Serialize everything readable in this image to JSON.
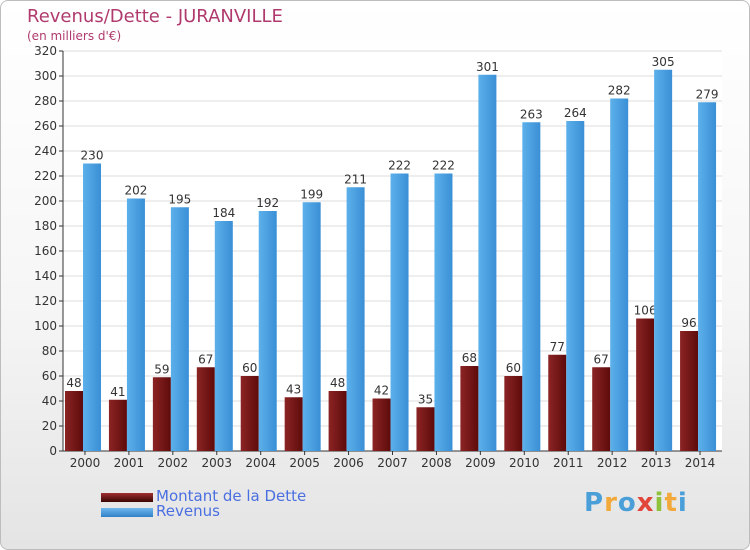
{
  "title": "Revenus/Dette - JURANVILLE",
  "subtitle": "(en milliers d'€)",
  "logo": {
    "text": "Proxiti",
    "letters": [
      {
        "ch": "P",
        "color": "#4a9fd8"
      },
      {
        "ch": "r",
        "color": "#f2a93b"
      },
      {
        "ch": "o",
        "color": "#4a9fd8"
      },
      {
        "ch": "x",
        "color": "#e2463a"
      },
      {
        "ch": "i",
        "color": "#8fc23c"
      },
      {
        "ch": "t",
        "color": "#f2a93b"
      },
      {
        "ch": "i",
        "color": "#4a9fd8"
      }
    ]
  },
  "legend": {
    "position": "bottom-left",
    "items": [
      {
        "label": "Montant de la Dette",
        "color": "#7a1a1a"
      },
      {
        "label": "Revenus",
        "color": "#4a9fe0"
      }
    ]
  },
  "chart_data": {
    "type": "bar",
    "categories": [
      "2000",
      "2001",
      "2002",
      "2003",
      "2004",
      "2005",
      "2006",
      "2007",
      "2008",
      "2009",
      "2010",
      "2011",
      "2012",
      "2013",
      "2014"
    ],
    "series": [
      {
        "name": "Montant de la Dette",
        "color": "#7a1a1a",
        "values": [
          48,
          41,
          59,
          67,
          60,
          43,
          48,
          42,
          35,
          68,
          60,
          77,
          67,
          106,
          96
        ]
      },
      {
        "name": "Revenus",
        "color": "#4a9fe0",
        "values": [
          230,
          202,
          195,
          184,
          192,
          199,
          211,
          222,
          222,
          301,
          263,
          264,
          282,
          305,
          279
        ]
      }
    ],
    "ylim": [
      0,
      320
    ],
    "yticks": [
      0,
      20,
      40,
      60,
      80,
      100,
      120,
      140,
      160,
      180,
      200,
      220,
      240,
      260,
      280,
      300,
      320
    ],
    "grid": true
  }
}
